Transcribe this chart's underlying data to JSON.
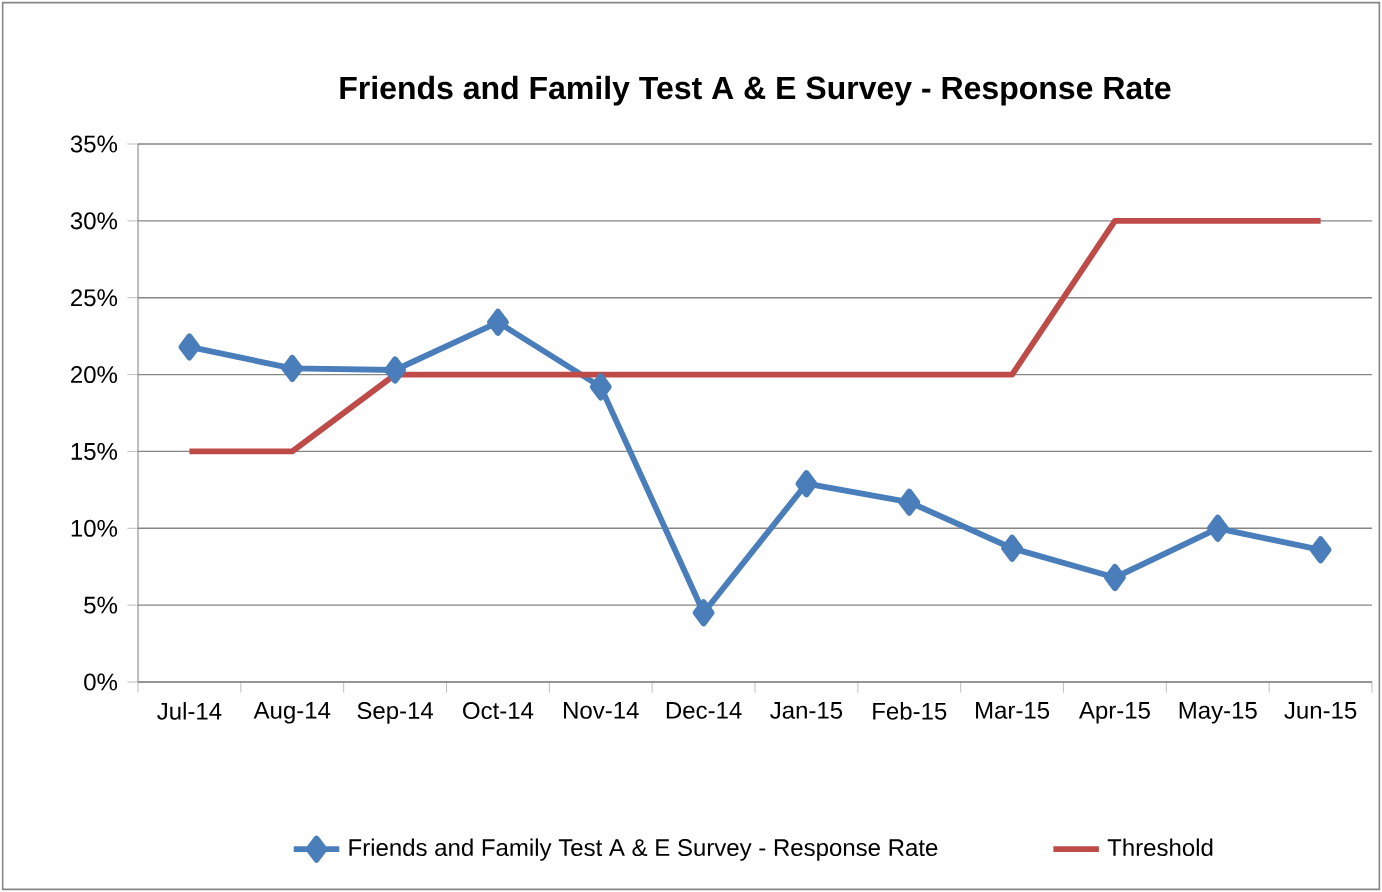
{
  "chart_data": {
    "type": "line",
    "title": "Friends and Family Test A & E Survey - Response Rate",
    "categories": [
      "Jul-14",
      "Aug-14",
      "Sep-14",
      "Oct-14",
      "Nov-14",
      "Dec-14",
      "Jan-15",
      "Feb-15",
      "Mar-15",
      "Apr-15",
      "May-15",
      "Jun-15"
    ],
    "series": [
      {
        "name": "Friends and Family Test A & E Survey - Response Rate",
        "color": "#4a7ebb",
        "marker": "diamond",
        "values": [
          21.8,
          20.4,
          20.3,
          23.4,
          19.2,
          4.5,
          12.9,
          11.7,
          8.7,
          6.8,
          10.0,
          8.6
        ]
      },
      {
        "name": "Threshold",
        "color": "#be4b48",
        "marker": "none",
        "values": [
          15,
          15,
          20,
          20,
          20,
          20,
          20,
          20,
          20,
          30,
          30,
          30
        ]
      }
    ],
    "ylim": [
      0,
      35
    ],
    "yticks": [
      {
        "value": 0,
        "label": "0%"
      },
      {
        "value": 5,
        "label": "5%"
      },
      {
        "value": 10,
        "label": "10%"
      },
      {
        "value": 15,
        "label": "15%"
      },
      {
        "value": 20,
        "label": "20%"
      },
      {
        "value": 25,
        "label": "25%"
      },
      {
        "value": 30,
        "label": "30%"
      },
      {
        "value": 35,
        "label": "35%"
      }
    ],
    "grid": "y",
    "legend": "bottom",
    "line_style": "solid"
  }
}
